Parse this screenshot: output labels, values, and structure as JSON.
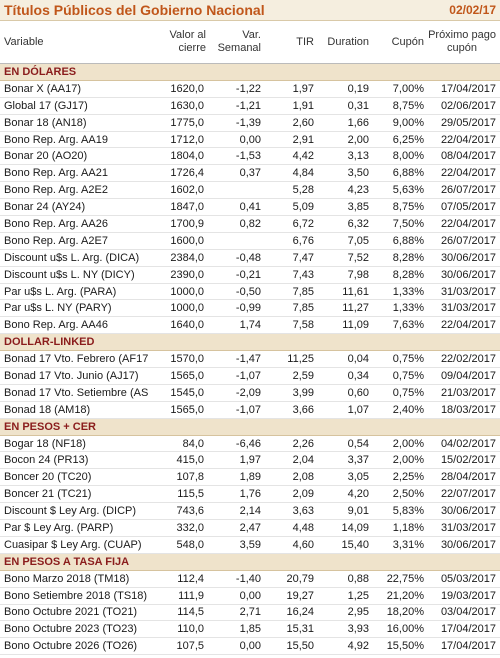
{
  "header": {
    "title": "Títulos Públicos del Gobierno Nacional",
    "date": "02/02/17"
  },
  "columns": [
    "Variable",
    "Valor al cierre",
    "Var. Semanal",
    "TIR",
    "Duration",
    "Cupón",
    "Próximo pago cupón"
  ],
  "sections": [
    {
      "title": "EN DÓLARES",
      "rows": [
        [
          "Bonar X (AA17)",
          "1620,0",
          "-1,22",
          "1,97",
          "0,19",
          "7,00%",
          "17/04/2017"
        ],
        [
          "Global 17 (GJ17)",
          "1630,0",
          "-1,21",
          "1,91",
          "0,31",
          "8,75%",
          "02/06/2017"
        ],
        [
          "Bonar 18 (AN18)",
          "1775,0",
          "-1,39",
          "2,60",
          "1,66",
          "9,00%",
          "29/05/2017"
        ],
        [
          "Bono Rep. Arg. AA19",
          "1712,0",
          "0,00",
          "2,91",
          "2,00",
          "6,25%",
          "22/04/2017"
        ],
        [
          "Bonar 20 (AO20)",
          "1804,0",
          "-1,53",
          "4,42",
          "3,13",
          "8,00%",
          "08/04/2017"
        ],
        [
          "Bono Rep. Arg. AA21",
          "1726,4",
          "0,37",
          "4,84",
          "3,50",
          "6,88%",
          "22/04/2017"
        ],
        [
          "Bono Rep. Arg. A2E2",
          "1602,0",
          null,
          "5,28",
          "4,23",
          "5,63%",
          "26/07/2017"
        ],
        [
          "Bonar 24 (AY24)",
          "1847,0",
          "0,41",
          "5,09",
          "3,85",
          "8,75%",
          "07/05/2017"
        ],
        [
          "Bono Rep. Arg. AA26",
          "1700,9",
          "0,82",
          "6,72",
          "6,32",
          "7,50%",
          "22/04/2017"
        ],
        [
          "Bono Rep. Arg. A2E7",
          "1600,0",
          null,
          "6,76",
          "7,05",
          "6,88%",
          "26/07/2017"
        ],
        [
          "Discount u$s L. Arg. (DICA)",
          "2384,0",
          "-0,48",
          "7,47",
          "7,52",
          "8,28%",
          "30/06/2017"
        ],
        [
          "Discount u$s L. NY (DICY)",
          "2390,0",
          "-0,21",
          "7,43",
          "7,98",
          "8,28%",
          "30/06/2017"
        ],
        [
          "Par u$s L. Arg. (PARA)",
          "1000,0",
          "-0,50",
          "7,85",
          "11,61",
          "1,33%",
          "31/03/2017"
        ],
        [
          "Par u$s L. NY (PARY)",
          "1000,0",
          "-0,99",
          "7,85",
          "11,27",
          "1,33%",
          "31/03/2017"
        ],
        [
          "Bono Rep. Arg. AA46",
          "1640,0",
          "1,74",
          "7,58",
          "11,09",
          "7,63%",
          "22/04/2017"
        ]
      ]
    },
    {
      "title": "DOLLAR-LINKED",
      "rows": [
        [
          "Bonad 17 Vto. Febrero (AF17",
          "1570,0",
          "-1,47",
          "11,25",
          "0,04",
          "0,75%",
          "22/02/2017"
        ],
        [
          "Bonad 17 Vto. Junio (AJ17)",
          "1565,0",
          "-1,07",
          "2,59",
          "0,34",
          "0,75%",
          "09/04/2017"
        ],
        [
          "Bonad 17 Vto. Setiembre (AS",
          "1545,0",
          "-2,09",
          "3,99",
          "0,60",
          "0,75%",
          "21/03/2017"
        ],
        [
          "Bonad 18 (AM18)",
          "1565,0",
          "-1,07",
          "3,66",
          "1,07",
          "2,40%",
          "18/03/2017"
        ]
      ]
    },
    {
      "title": "EN PESOS + CER",
      "rows": [
        [
          "Bogar 18 (NF18)",
          "84,0",
          "-6,46",
          "2,26",
          "0,54",
          "2,00%",
          "04/02/2017"
        ],
        [
          "Bocon 24 (PR13)",
          "415,0",
          "1,97",
          "2,04",
          "3,37",
          "2,00%",
          "15/02/2017"
        ],
        [
          "Boncer 20 (TC20)",
          "107,8",
          "1,89",
          "2,08",
          "3,05",
          "2,25%",
          "28/04/2017"
        ],
        [
          "Boncer 21 (TC21)",
          "115,5",
          "1,76",
          "2,09",
          "4,20",
          "2,50%",
          "22/07/2017"
        ],
        [
          "Discount $ Ley Arg. (DICP)",
          "743,6",
          "2,14",
          "3,63",
          "9,01",
          "5,83%",
          "30/06/2017"
        ],
        [
          "Par $ Ley Arg. (PARP)",
          "332,0",
          "2,47",
          "4,48",
          "14,09",
          "1,18%",
          "31/03/2017"
        ],
        [
          "Cuasipar $ Ley Arg. (CUAP)",
          "548,0",
          "3,59",
          "4,60",
          "15,40",
          "3,31%",
          "30/06/2017"
        ]
      ]
    },
    {
      "title": "EN PESOS A TASA FIJA",
      "rows": [
        [
          "Bono Marzo 2018 (TM18)",
          "112,4",
          "-1,40",
          "20,79",
          "0,88",
          "22,75%",
          "05/03/2017"
        ],
        [
          "Bono Setiembre 2018 (TS18)",
          "111,9",
          "0,00",
          "19,27",
          "1,25",
          "21,20%",
          "19/03/2017"
        ],
        [
          "Bono Octubre 2021 (TO21)",
          "114,5",
          "2,71",
          "16,24",
          "2,95",
          "18,20%",
          "03/04/2017"
        ],
        [
          "Bono Octubre 2023 (TO23)",
          "110,0",
          "1,85",
          "15,31",
          "3,93",
          "16,00%",
          "17/04/2017"
        ],
        [
          "Bono Octubre 2026 (TO26)",
          "107,5",
          "0,00",
          "15,50",
          "4,92",
          "15,50%",
          "17/04/2017"
        ]
      ]
    }
  ]
}
